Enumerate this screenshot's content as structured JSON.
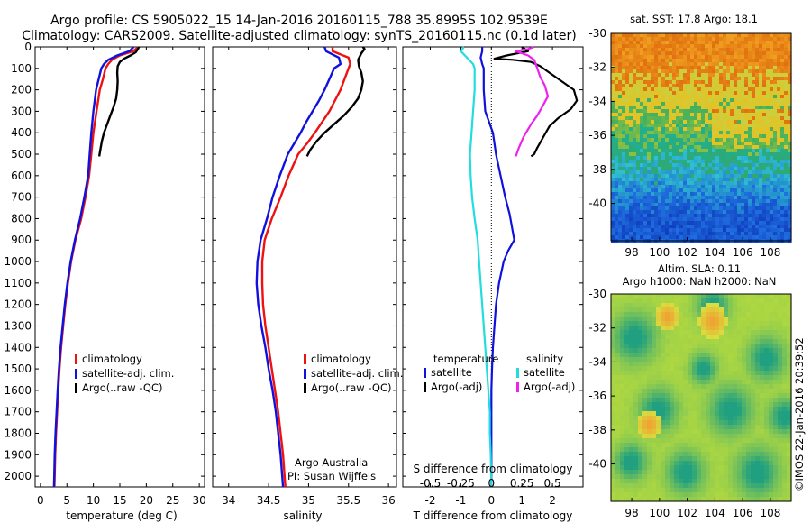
{
  "header": {
    "title_line1": "Argo profile: CS 5905022_15 14-Jan-2016 20160115_788 35.8995S 102.9539E",
    "title_line2": "Climatology: CARS2009. Satellite-adjusted climatology: synTS_20160115.nc (0.1d later)"
  },
  "colors": {
    "climatology": "#ee1111",
    "satellite": "#1111dd",
    "argo": "#000000",
    "salinity_satellite": "#22dddd",
    "salinity_argo": "#ee22ee"
  },
  "depth_axis": {
    "range": [
      0,
      2050
    ],
    "ticks": [
      0,
      100,
      200,
      300,
      400,
      500,
      600,
      700,
      800,
      900,
      1000,
      1100,
      1200,
      1300,
      1400,
      1500,
      1600,
      1700,
      1800,
      1900,
      2000
    ]
  },
  "chart_data": [
    {
      "id": "temperature",
      "type": "line",
      "xlabel": "temperature (deg C)",
      "xlim": [
        -1,
        31
      ],
      "xticks": [
        0,
        5,
        10,
        15,
        20,
        25,
        30
      ],
      "legend": [
        "climatology",
        "satellite-adj. clim.",
        "Argo(..raw -QC)"
      ],
      "series": [
        {
          "name": "climatology",
          "color": "#ee1111",
          "points": [
            [
              18.5,
              0
            ],
            [
              17.5,
              20
            ],
            [
              15.0,
              40
            ],
            [
              13.5,
              60
            ],
            [
              12.8,
              80
            ],
            [
              12.3,
              100
            ],
            [
              11.8,
              150
            ],
            [
              11.2,
              200
            ],
            [
              10.6,
              300
            ],
            [
              10.0,
              400
            ],
            [
              9.6,
              500
            ],
            [
              9.2,
              600
            ],
            [
              8.5,
              700
            ],
            [
              7.7,
              800
            ],
            [
              6.6,
              900
            ],
            [
              5.8,
              1000
            ],
            [
              5.2,
              1100
            ],
            [
              4.7,
              1200
            ],
            [
              4.3,
              1300
            ],
            [
              3.9,
              1400
            ],
            [
              3.6,
              1500
            ],
            [
              3.35,
              1600
            ],
            [
              3.15,
              1700
            ],
            [
              2.95,
              1800
            ],
            [
              2.8,
              1900
            ],
            [
              2.7,
              2000
            ],
            [
              2.65,
              2050
            ]
          ]
        },
        {
          "name": "satellite-adj. clim.",
          "color": "#1111dd",
          "points": [
            [
              17.6,
              0
            ],
            [
              16.8,
              20
            ],
            [
              14.5,
              40
            ],
            [
              12.8,
              60
            ],
            [
              12.0,
              80
            ],
            [
              11.5,
              100
            ],
            [
              11.0,
              150
            ],
            [
              10.5,
              200
            ],
            [
              10.0,
              300
            ],
            [
              9.6,
              400
            ],
            [
              9.3,
              500
            ],
            [
              9.0,
              600
            ],
            [
              8.3,
              700
            ],
            [
              7.5,
              800
            ],
            [
              6.5,
              900
            ],
            [
              5.7,
              1000
            ],
            [
              5.1,
              1100
            ],
            [
              4.6,
              1200
            ],
            [
              4.2,
              1300
            ],
            [
              3.8,
              1400
            ],
            [
              3.5,
              1500
            ],
            [
              3.25,
              1600
            ],
            [
              3.05,
              1700
            ],
            [
              2.85,
              1800
            ],
            [
              2.7,
              1900
            ],
            [
              2.6,
              2000
            ],
            [
              2.55,
              2050
            ]
          ]
        },
        {
          "name": "Argo(..raw -QC)",
          "color": "#000000",
          "points": [
            [
              18.6,
              0
            ],
            [
              18.4,
              10
            ],
            [
              18.0,
              25
            ],
            [
              17.0,
              40
            ],
            [
              15.8,
              55
            ],
            [
              15.0,
              70
            ],
            [
              14.6,
              90
            ],
            [
              14.5,
              120
            ],
            [
              14.6,
              160
            ],
            [
              14.5,
              200
            ],
            [
              14.3,
              240
            ],
            [
              13.8,
              280
            ],
            [
              13.2,
              320
            ],
            [
              12.6,
              360
            ],
            [
              12.0,
              400
            ],
            [
              11.6,
              440
            ],
            [
              11.3,
              480
            ],
            [
              11.1,
              510
            ]
          ]
        }
      ]
    },
    {
      "id": "salinity",
      "type": "line",
      "xlabel": "salinity",
      "xlim": [
        33.8,
        36.1
      ],
      "xticks": [
        34,
        34.5,
        35,
        35.5,
        36
      ],
      "legend": [
        "climatology",
        "satellite-adj. clim.",
        "Argo(..raw -QC)"
      ],
      "annotation_line1": "Argo Australia",
      "annotation_line2": "PI: Susan Wijffels",
      "series": [
        {
          "name": "climatology",
          "color": "#ee1111",
          "points": [
            [
              35.3,
              0
            ],
            [
              35.3,
              20
            ],
            [
              35.5,
              50
            ],
            [
              35.52,
              80
            ],
            [
              35.5,
              100
            ],
            [
              35.45,
              150
            ],
            [
              35.4,
              200
            ],
            [
              35.33,
              250
            ],
            [
              35.26,
              300
            ],
            [
              35.17,
              350
            ],
            [
              35.08,
              400
            ],
            [
              34.98,
              450
            ],
            [
              34.87,
              500
            ],
            [
              34.75,
              600
            ],
            [
              34.65,
              700
            ],
            [
              34.54,
              800
            ],
            [
              34.45,
              900
            ],
            [
              34.42,
              1000
            ],
            [
              34.42,
              1100
            ],
            [
              34.43,
              1200
            ],
            [
              34.46,
              1300
            ],
            [
              34.5,
              1400
            ],
            [
              34.54,
              1500
            ],
            [
              34.58,
              1600
            ],
            [
              34.62,
              1700
            ],
            [
              34.65,
              1800
            ],
            [
              34.68,
              1900
            ],
            [
              34.7,
              2000
            ],
            [
              34.71,
              2050
            ]
          ]
        },
        {
          "name": "satellite-adj. clim.",
          "color": "#1111dd",
          "points": [
            [
              35.2,
              0
            ],
            [
              35.22,
              20
            ],
            [
              35.38,
              50
            ],
            [
              35.4,
              80
            ],
            [
              35.32,
              100
            ],
            [
              35.26,
              150
            ],
            [
              35.2,
              200
            ],
            [
              35.13,
              250
            ],
            [
              35.05,
              300
            ],
            [
              34.97,
              350
            ],
            [
              34.9,
              400
            ],
            [
              34.82,
              450
            ],
            [
              34.74,
              500
            ],
            [
              34.64,
              600
            ],
            [
              34.55,
              700
            ],
            [
              34.48,
              800
            ],
            [
              34.4,
              900
            ],
            [
              34.36,
              1000
            ],
            [
              34.35,
              1100
            ],
            [
              34.37,
              1200
            ],
            [
              34.41,
              1300
            ],
            [
              34.46,
              1400
            ],
            [
              34.5,
              1500
            ],
            [
              34.55,
              1600
            ],
            [
              34.59,
              1700
            ],
            [
              34.62,
              1800
            ],
            [
              34.65,
              1900
            ],
            [
              34.67,
              2000
            ],
            [
              34.68,
              2050
            ]
          ]
        },
        {
          "name": "Argo(..raw -QC)",
          "color": "#000000",
          "points": [
            [
              35.68,
              0
            ],
            [
              35.7,
              10
            ],
            [
              35.66,
              30
            ],
            [
              35.62,
              60
            ],
            [
              35.63,
              90
            ],
            [
              35.66,
              120
            ],
            [
              35.68,
              160
            ],
            [
              35.66,
              200
            ],
            [
              35.62,
              240
            ],
            [
              35.54,
              280
            ],
            [
              35.44,
              320
            ],
            [
              35.32,
              360
            ],
            [
              35.2,
              400
            ],
            [
              35.1,
              440
            ],
            [
              35.02,
              480
            ],
            [
              34.98,
              510
            ]
          ]
        }
      ]
    },
    {
      "id": "difference",
      "type": "line",
      "xlabel": "T difference from climatology",
      "xlabel2": "S difference from climatology",
      "xlim": [
        -2.9,
        3.0
      ],
      "xticks": [
        -2,
        -1,
        0,
        1,
        2
      ],
      "s_ticks": [
        "-0.5",
        "-0.25",
        "0",
        "0.25",
        "0.5"
      ],
      "legend_temperature_title": "temperature",
      "legend_salinity_title": "salinity",
      "legend_temperature": [
        "satellite",
        "Argo(-adj)"
      ],
      "legend_salinity": [
        "satellite",
        "Argo(-adj)"
      ],
      "series": [
        {
          "name": "temperature satellite",
          "color": "#1111dd",
          "points": [
            [
              -0.3,
              0
            ],
            [
              -0.3,
              20
            ],
            [
              -0.35,
              50
            ],
            [
              -0.3,
              80
            ],
            [
              -0.25,
              100
            ],
            [
              -0.25,
              200
            ],
            [
              -0.2,
              300
            ],
            [
              0.05,
              400
            ],
            [
              0.15,
              500
            ],
            [
              0.3,
              600
            ],
            [
              0.45,
              700
            ],
            [
              0.6,
              780
            ],
            [
              0.75,
              900
            ],
            [
              0.55,
              950
            ],
            [
              0.4,
              1000
            ],
            [
              0.25,
              1100
            ],
            [
              0.15,
              1200
            ],
            [
              0.1,
              1300
            ],
            [
              0.05,
              1400
            ],
            [
              0.02,
              1500
            ],
            [
              0.0,
              1600
            ],
            [
              0.0,
              1800
            ],
            [
              0.0,
              2000
            ],
            [
              0.0,
              2050
            ]
          ]
        },
        {
          "name": "temperature Argo(-adj)",
          "color": "#000000",
          "points": [
            [
              1.0,
              0
            ],
            [
              1.2,
              20
            ],
            [
              0.5,
              40
            ],
            [
              0.1,
              55
            ],
            [
              0.7,
              60
            ],
            [
              1.3,
              70
            ],
            [
              1.6,
              90
            ],
            [
              1.9,
              120
            ],
            [
              2.3,
              160
            ],
            [
              2.7,
              200
            ],
            [
              2.8,
              250
            ],
            [
              2.6,
              290
            ],
            [
              2.2,
              330
            ],
            [
              1.9,
              370
            ],
            [
              1.7,
              420
            ],
            [
              1.5,
              470
            ],
            [
              1.4,
              500
            ],
            [
              1.3,
              510
            ]
          ]
        },
        {
          "name": "salinity satellite",
          "color": "#22dddd",
          "points": [
            [
              -0.9,
              0
            ],
            [
              -1.0,
              20
            ],
            [
              -0.8,
              50
            ],
            [
              -0.6,
              80
            ],
            [
              -0.55,
              100
            ],
            [
              -0.55,
              200
            ],
            [
              -0.6,
              300
            ],
            [
              -0.65,
              400
            ],
            [
              -0.7,
              500
            ],
            [
              -0.68,
              600
            ],
            [
              -0.63,
              700
            ],
            [
              -0.55,
              800
            ],
            [
              -0.45,
              900
            ],
            [
              -0.4,
              1000
            ],
            [
              -0.35,
              1100
            ],
            [
              -0.3,
              1200
            ],
            [
              -0.25,
              1300
            ],
            [
              -0.2,
              1400
            ],
            [
              -0.15,
              1500
            ],
            [
              -0.1,
              1600
            ],
            [
              -0.05,
              1700
            ],
            [
              -0.05,
              1800
            ],
            [
              -0.02,
              1900
            ],
            [
              0.0,
              2050
            ]
          ]
        },
        {
          "name": "salinity Argo(-adj)",
          "color": "#ee22ee",
          "points": [
            [
              1.4,
              0
            ],
            [
              1.2,
              10
            ],
            [
              0.8,
              20
            ],
            [
              1.2,
              40
            ],
            [
              1.4,
              60
            ],
            [
              1.5,
              100
            ],
            [
              1.6,
              140
            ],
            [
              1.75,
              180
            ],
            [
              1.85,
              230
            ],
            [
              1.7,
              270
            ],
            [
              1.5,
              320
            ],
            [
              1.3,
              360
            ],
            [
              1.05,
              420
            ],
            [
              0.9,
              470
            ],
            [
              0.8,
              510
            ]
          ]
        }
      ]
    },
    {
      "id": "sst_map",
      "type": "heatmap",
      "title": "sat. SST: 17.8 Argo: 18.1",
      "xlim": [
        96.5,
        109.5
      ],
      "ylim": [
        -42.2,
        -30
      ],
      "xticks": [
        98,
        100,
        102,
        104,
        106,
        108
      ],
      "yticks": [
        -30,
        -32,
        -34,
        -36,
        -38,
        -40
      ]
    },
    {
      "id": "sla_map",
      "type": "heatmap",
      "title_line1": "Altim. SLA: 0.11",
      "title_line2": "Argo h1000: NaN h2000: NaN",
      "xlim": [
        96.5,
        109.5
      ],
      "ylim": [
        -42.2,
        -30
      ],
      "xticks": [
        98,
        100,
        102,
        104,
        106,
        108
      ],
      "yticks": [
        -30,
        -32,
        -34,
        -36,
        -38,
        -40
      ]
    }
  ],
  "footer": {
    "credit": "©IMOS 22-Jan-2016 20:39:52"
  }
}
